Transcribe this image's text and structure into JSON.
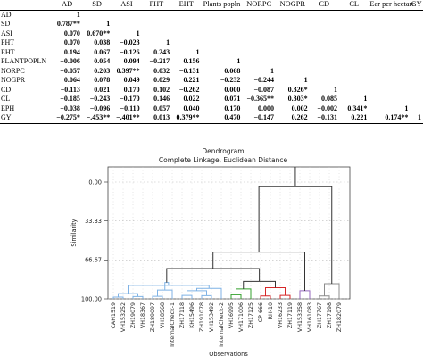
{
  "table": {
    "headers": [
      "",
      "AD",
      "SD",
      "ASI",
      "PHT",
      "EHT",
      "Plants popln",
      "NORPC",
      "NOGPR",
      "CD",
      "CL",
      "Ear per hectare",
      "GY"
    ],
    "rows": [
      {
        "label": "AD",
        "cells": [
          "1",
          "",
          "",
          "",
          "",
          "",
          "",
          "",
          "",
          "",
          "",
          ""
        ]
      },
      {
        "label": "SD",
        "cells": [
          "0.787**",
          "1",
          "",
          "",
          "",
          "",
          "",
          "",
          "",
          "",
          "",
          ""
        ]
      },
      {
        "label": "ASI",
        "cells": [
          "0.070",
          "0.670**",
          "1",
          "",
          "",
          "",
          "",
          "",
          "",
          "",
          "",
          ""
        ]
      },
      {
        "label": "PHT",
        "cells": [
          "0.070",
          "0.038",
          "−0.023",
          "1",
          "",
          "",
          "",
          "",
          "",
          "",
          "",
          ""
        ]
      },
      {
        "label": "EHT",
        "cells": [
          "0.194",
          "0.067",
          "−0.126",
          "0.243",
          "1",
          "",
          "",
          "",
          "",
          "",
          "",
          ""
        ]
      },
      {
        "label": "PLANTPOPLN",
        "cells": [
          "−0.006",
          "0.054",
          "0.094",
          "−0.217",
          "0.156",
          "1",
          "",
          "",
          "",
          "",
          "",
          ""
        ]
      },
      {
        "label": "NORPC",
        "cells": [
          "−0.057",
          "0.203",
          "0.397**",
          "0.032",
          "−0.131",
          "0.068",
          "1",
          "",
          "",
          "",
          "",
          ""
        ]
      },
      {
        "label": "NOGPR",
        "cells": [
          "0.064",
          "0.078",
          "0.049",
          "0.029",
          "0.221",
          "−0.232",
          "−0.244",
          "1",
          "",
          "",
          "",
          ""
        ]
      },
      {
        "label": "CD",
        "cells": [
          "−0.113",
          "0.021",
          "0.170",
          "0.102",
          "−0.262",
          "0.000",
          "−0.087",
          "0.326*",
          "1",
          "",
          "",
          ""
        ]
      },
      {
        "label": "CL",
        "cells": [
          "−0.185",
          "−0.243",
          "−0.170",
          "0.146",
          "0.022",
          "0.071",
          "−0.365**",
          "0.303*",
          "0.085",
          "1",
          "",
          ""
        ]
      },
      {
        "label": "EPH",
        "cells": [
          "−0.038",
          "−0.096",
          "−0.110",
          "0.057",
          "0.040",
          "0.170",
          "0.000",
          "0.002",
          "−0.002",
          "0.341*",
          "1",
          ""
        ]
      },
      {
        "label": "GY",
        "cells": [
          "−0.275*",
          "−.453**",
          "−.401**",
          "0.013",
          "0.379**",
          "0.470",
          "−0.147",
          "0.262",
          "−0.131",
          "0.221",
          "0.174**",
          "1"
        ]
      }
    ]
  },
  "chart_data": {
    "type": "dendrogram",
    "title": "Dendrogram",
    "subtitle": "Complete Linkage, Euclidean Distance",
    "ylabel": "Similarity",
    "xlabel": "Observations",
    "yticks": [
      "0.00",
      "33.33",
      "66.67",
      "100.00"
    ],
    "ylim": [
      0,
      100
    ],
    "leaves": [
      "CAH1519",
      "VH153252",
      "ZH19079",
      "VH18367",
      "ZH189097",
      "VH18568",
      "InternalCheck-1",
      "ZH17118",
      "KH15496",
      "ZH191078",
      "VH153492",
      "InternalCheck-2",
      "VH16995",
      "VH171006",
      "ZH17125",
      "CP-666",
      "RH-10",
      "VH16233",
      "ZH17119",
      "VH153358",
      "VH161083",
      "ZH17767",
      "ZH17198",
      "ZH182079"
    ],
    "clusters": [
      {
        "color": "#7fb2e5",
        "leaves": [
          0,
          11
        ]
      },
      {
        "color": "#33a02c",
        "leaves": [
          12,
          14
        ]
      },
      {
        "color": "#d62728",
        "leaves": [
          15,
          18
        ]
      },
      {
        "color": "#9467bd",
        "leaves": [
          19,
          20
        ]
      },
      {
        "color": "#8c8c8c",
        "leaves": [
          21,
          23
        ]
      }
    ],
    "merges": [
      {
        "a": 0,
        "b": 1,
        "sim": 98.5,
        "cluster": 0
      },
      {
        "a": 2,
        "b": 3,
        "sim": 98.0,
        "cluster": 0
      },
      {
        "a": 4,
        "b": 5,
        "sim": 97.8,
        "cluster": 0
      },
      {
        "a": 7,
        "b": 8,
        "sim": 97.0,
        "cluster": 0
      },
      {
        "a": 9,
        "b": 10,
        "sim": 97.2,
        "cluster": 0
      },
      {
        "a": 24,
        "b": 25,
        "sim": 95.5,
        "cluster": 0
      },
      {
        "a": 26,
        "b": 6,
        "sim": 92.5,
        "cluster": 0
      },
      {
        "a": 27,
        "b": 28,
        "sim": 93.0,
        "cluster": 0
      },
      {
        "a": 11,
        "b": 31,
        "sim": 91.0,
        "cluster": 0
      },
      {
        "a": 29,
        "b": 32,
        "sim": 88.5,
        "cluster": 0
      },
      {
        "a": 30,
        "b": 33,
        "sim": 86.0,
        "cluster": 0
      },
      {
        "a": 12,
        "b": 13,
        "sim": 96.5,
        "cluster": 1
      },
      {
        "a": 35,
        "b": 14,
        "sim": 91.5,
        "cluster": 1
      },
      {
        "a": 15,
        "b": 16,
        "sim": 97.5,
        "cluster": 2
      },
      {
        "a": 17,
        "b": 18,
        "sim": 97.0,
        "cluster": 2
      },
      {
        "a": 37,
        "b": 38,
        "sim": 90.5,
        "cluster": 2
      },
      {
        "a": 19,
        "b": 20,
        "sim": 93.0,
        "cluster": 3
      },
      {
        "a": 21,
        "b": 22,
        "sim": 97.5,
        "cluster": 4
      },
      {
        "a": 41,
        "b": 23,
        "sim": 87.0,
        "cluster": 4
      },
      {
        "a": 36,
        "b": 39,
        "sim": 85.0,
        "cluster": -1
      },
      {
        "a": 34,
        "b": 43,
        "sim": 74.0,
        "cluster": -1
      },
      {
        "a": 44,
        "b": 40,
        "sim": 60.0,
        "cluster": -1
      },
      {
        "a": 45,
        "b": 42,
        "sim": 4.0,
        "cluster": -1
      }
    ]
  }
}
